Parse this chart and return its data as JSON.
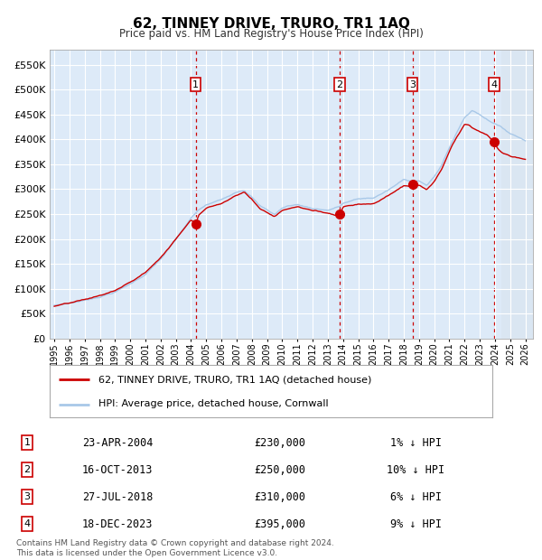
{
  "title": "62, TINNEY DRIVE, TRURO, TR1 1AQ",
  "subtitle": "Price paid vs. HM Land Registry's House Price Index (HPI)",
  "footer": "Contains HM Land Registry data © Crown copyright and database right 2024.\nThis data is licensed under the Open Government Licence v3.0.",
  "legend_line1": "62, TINNEY DRIVE, TRURO, TR1 1AQ (detached house)",
  "legend_line2": "HPI: Average price, detached house, Cornwall",
  "bg_color": "#ddeaf8",
  "hpi_color": "#a8c8e8",
  "price_color": "#cc0000",
  "sale_marker_color": "#cc0000",
  "ylim": [
    0,
    580000
  ],
  "yticks": [
    0,
    50000,
    100000,
    150000,
    200000,
    250000,
    300000,
    350000,
    400000,
    450000,
    500000,
    550000
  ],
  "ytick_labels": [
    "£0",
    "£50K",
    "£100K",
    "£150K",
    "£200K",
    "£250K",
    "£300K",
    "£350K",
    "£400K",
    "£450K",
    "£500K",
    "£550K"
  ],
  "xstart": 1995,
  "xend": 2026,
  "xticks": [
    1995,
    1996,
    1997,
    1998,
    1999,
    2000,
    2001,
    2002,
    2003,
    2004,
    2005,
    2006,
    2007,
    2008,
    2009,
    2010,
    2011,
    2012,
    2013,
    2014,
    2015,
    2016,
    2017,
    2018,
    2019,
    2020,
    2021,
    2022,
    2023,
    2024,
    2025,
    2026
  ],
  "sales": [
    {
      "num": 1,
      "date": "23-APR-2004",
      "price": 230000,
      "year": 2004.31,
      "hpi_pct": "1%",
      "dir": "↓"
    },
    {
      "num": 2,
      "date": "16-OCT-2013",
      "price": 250000,
      "year": 2013.79,
      "hpi_pct": "10%",
      "dir": "↓"
    },
    {
      "num": 3,
      "date": "27-JUL-2018",
      "price": 310000,
      "year": 2018.57,
      "hpi_pct": "6%",
      "dir": "↓"
    },
    {
      "num": 4,
      "date": "18-DEC-2023",
      "price": 395000,
      "year": 2023.96,
      "hpi_pct": "9%",
      "dir": "↓"
    }
  ]
}
